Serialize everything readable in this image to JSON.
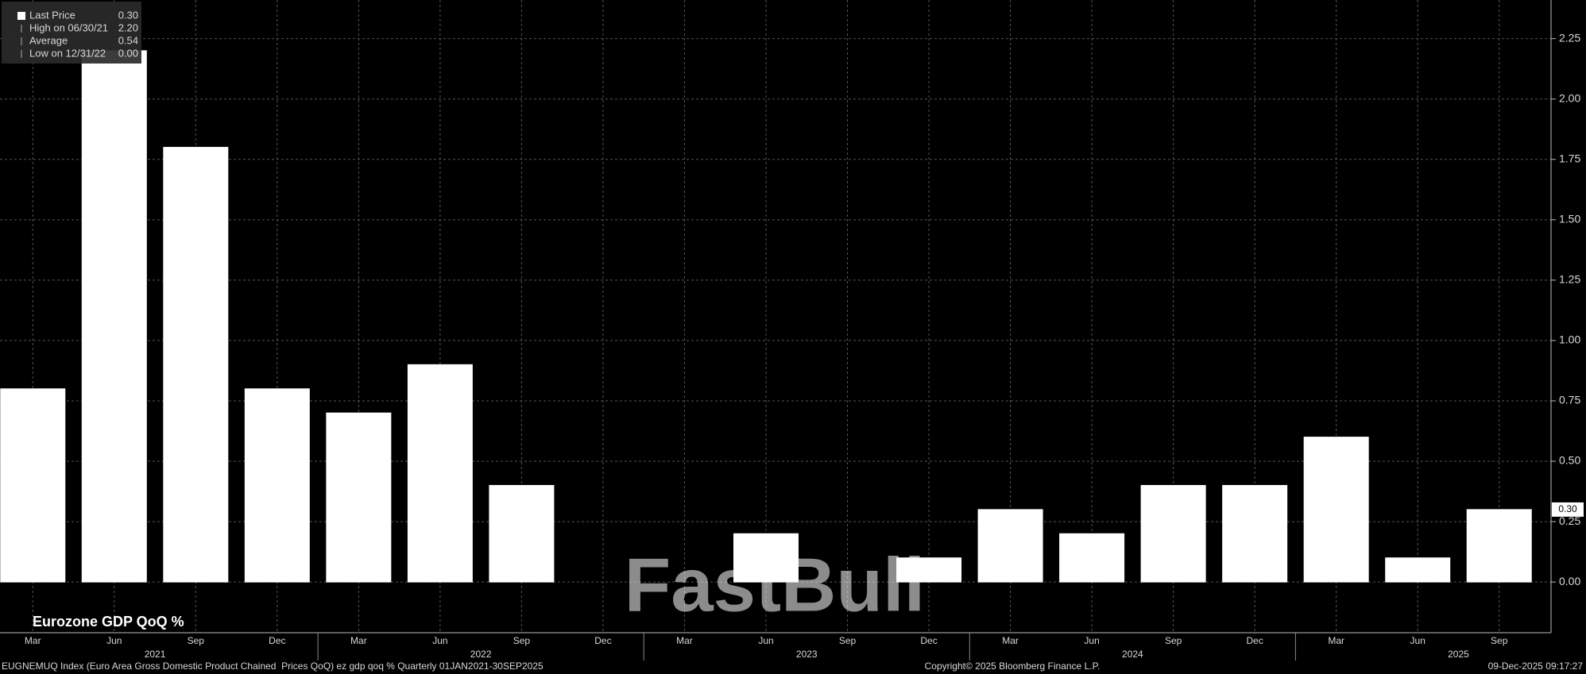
{
  "chart_data": {
    "type": "bar",
    "title": "Eurozone GDP QoQ %",
    "categories": [
      "Mar",
      "Jun",
      "Sep",
      "Dec",
      "Mar",
      "Jun",
      "Sep",
      "Dec",
      "Mar",
      "Jun",
      "Sep",
      "Dec",
      "Mar",
      "Jun",
      "Sep",
      "Dec",
      "Mar",
      "Jun",
      "Sep"
    ],
    "values": [
      0.8,
      2.2,
      1.8,
      0.8,
      0.7,
      0.9,
      0.4,
      0.0,
      0.0,
      0.2,
      0.0,
      0.1,
      0.3,
      0.2,
      0.4,
      0.4,
      0.6,
      0.1,
      0.3
    ],
    "color": "#ffffff",
    "year_labels": [
      "2021",
      "2022",
      "2023",
      "2024",
      "2025"
    ],
    "ylim": [
      -0.21,
      2.41
    ],
    "yticks": [
      {
        "value": 0,
        "label": "0.00"
      },
      {
        "value": 0.25,
        "label": "0.25"
      },
      {
        "value": 0.5,
        "label": "0.50"
      },
      {
        "value": 0.75,
        "label": "0.75"
      },
      {
        "value": 1,
        "label": "1.00"
      },
      {
        "value": 1.25,
        "label": "1.25"
      },
      {
        "value": 1.5,
        "label": "1.50"
      },
      {
        "value": 1.75,
        "label": "1.75"
      },
      {
        "value": 2,
        "label": "2.00"
      },
      {
        "value": 2.25,
        "label": "2.25"
      }
    ],
    "grid": true,
    "legend": [
      {
        "label": "Last Price",
        "value": "0.30"
      },
      {
        "label": "High on 06/30/21",
        "value": "2.20"
      },
      {
        "label": "Average",
        "value": "0.54"
      },
      {
        "label": "Low on 12/31/22",
        "value": "0.00"
      }
    ],
    "watermark": "FastBull",
    "footer": {
      "left": "EUGNEMUQ Index (Euro Area Gross Domestic Product Chained  Prices QoQ) ez gdp qoq % Quarterly 01JAN2021-30SEP2025",
      "center": "Copyright© 2025 Bloomberg Finance L.P.",
      "right": "09-Dec-2025 09:17:27"
    }
  }
}
